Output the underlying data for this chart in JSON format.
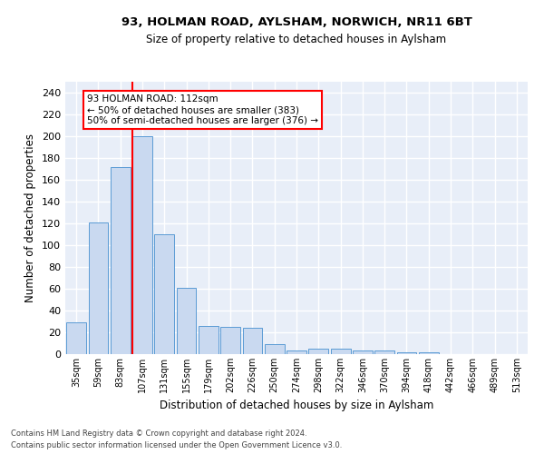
{
  "title1": "93, HOLMAN ROAD, AYLSHAM, NORWICH, NR11 6BT",
  "title2": "Size of property relative to detached houses in Aylsham",
  "xlabel": "Distribution of detached houses by size in Aylsham",
  "ylabel": "Number of detached properties",
  "footnote1": "Contains HM Land Registry data © Crown copyright and database right 2024.",
  "footnote2": "Contains public sector information licensed under the Open Government Licence v3.0.",
  "bar_labels": [
    "35sqm",
    "59sqm",
    "83sqm",
    "107sqm",
    "131sqm",
    "155sqm",
    "179sqm",
    "202sqm",
    "226sqm",
    "250sqm",
    "274sqm",
    "298sqm",
    "322sqm",
    "346sqm",
    "370sqm",
    "394sqm",
    "418sqm",
    "442sqm",
    "466sqm",
    "489sqm",
    "513sqm"
  ],
  "bar_values": [
    29,
    121,
    172,
    200,
    110,
    61,
    26,
    25,
    24,
    9,
    3,
    5,
    5,
    3,
    3,
    2,
    2,
    0,
    0,
    0,
    0
  ],
  "bar_color": "#c9d9f0",
  "bar_edge_color": "#5b9bd5",
  "vline_index": 3,
  "vline_color": "red",
  "annotation_text": "93 HOLMAN ROAD: 112sqm\n← 50% of detached houses are smaller (383)\n50% of semi-detached houses are larger (376) →",
  "annotation_box_color": "white",
  "annotation_box_edge": "red",
  "ylim": [
    0,
    250
  ],
  "yticks": [
    0,
    20,
    40,
    60,
    80,
    100,
    120,
    140,
    160,
    180,
    200,
    220,
    240
  ],
  "bg_color": "#e8eef8",
  "grid_color": "white"
}
